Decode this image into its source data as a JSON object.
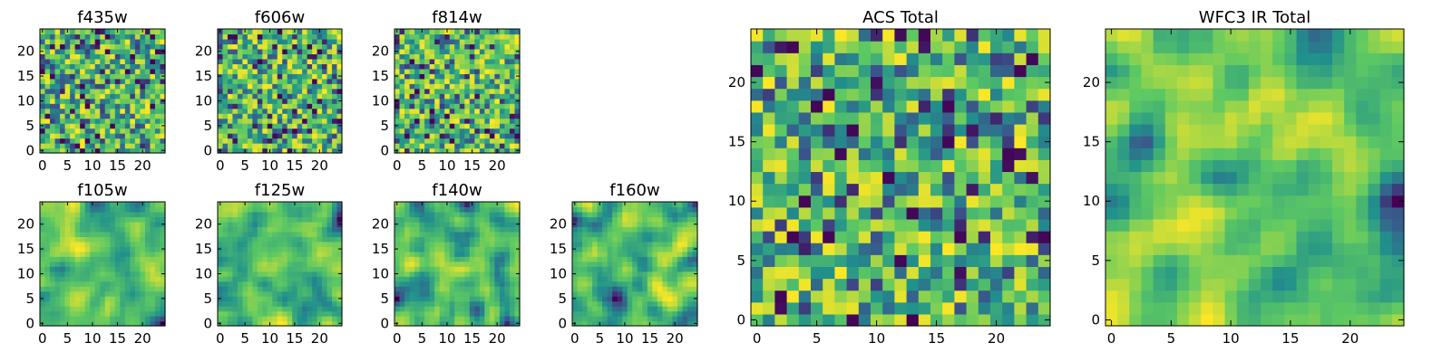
{
  "figure": {
    "description": ""
  },
  "colormap": {
    "name": "viridis",
    "stops": [
      "#440154",
      "#3b528b",
      "#21918c",
      "#5ec962",
      "#fde725"
    ]
  },
  "chart_data": [
    {
      "type": "heatmap",
      "title": "f435w",
      "xlim": [
        0,
        24
      ],
      "ylim": [
        0,
        24
      ],
      "xticks": [
        "0",
        "5",
        "10",
        "15",
        "20"
      ],
      "yticks": [
        "0",
        "5",
        "10",
        "15",
        "20"
      ],
      "grid_size": [
        25,
        25
      ],
      "style": "noise",
      "seed": 11,
      "grid": false,
      "values": "25x25 flux map (normalized 0–1), rendered with viridis"
    },
    {
      "type": "heatmap",
      "title": "f606w",
      "xlim": [
        0,
        24
      ],
      "ylim": [
        0,
        24
      ],
      "xticks": [
        "0",
        "5",
        "10",
        "15",
        "20"
      ],
      "yticks": [
        "0",
        "5",
        "10",
        "15",
        "20"
      ],
      "grid_size": [
        25,
        25
      ],
      "style": "noise",
      "seed": 23,
      "grid": false,
      "values": "25x25 flux map (normalized 0–1), rendered with viridis"
    },
    {
      "type": "heatmap",
      "title": "f814w",
      "xlim": [
        0,
        24
      ],
      "ylim": [
        0,
        24
      ],
      "xticks": [
        "0",
        "5",
        "10",
        "15",
        "20"
      ],
      "yticks": [
        "0",
        "5",
        "10",
        "15",
        "20"
      ],
      "grid_size": [
        25,
        25
      ],
      "style": "noise",
      "seed": 37,
      "grid": false,
      "values": "25x25 flux map (normalized 0–1), rendered with viridis"
    },
    {
      "type": "heatmap",
      "title": "f105w",
      "xlim": [
        0,
        24
      ],
      "ylim": [
        0,
        24
      ],
      "xticks": [
        "0",
        "5",
        "10",
        "15",
        "20"
      ],
      "yticks": [
        "0",
        "5",
        "10",
        "15",
        "20"
      ],
      "grid_size": [
        25,
        25
      ],
      "style": "smooth",
      "seed": 41,
      "grid": false,
      "values": "25x25 flux map (normalized 0–1), rendered with viridis"
    },
    {
      "type": "heatmap",
      "title": "f125w",
      "xlim": [
        0,
        24
      ],
      "ylim": [
        0,
        24
      ],
      "xticks": [
        "0",
        "5",
        "10",
        "15",
        "20"
      ],
      "yticks": [
        "0",
        "5",
        "10",
        "15",
        "20"
      ],
      "grid_size": [
        25,
        25
      ],
      "style": "smooth",
      "seed": 53,
      "grid": false,
      "values": "25x25 flux map (normalized 0–1), rendered with viridis"
    },
    {
      "type": "heatmap",
      "title": "f140w",
      "xlim": [
        0,
        24
      ],
      "ylim": [
        0,
        24
      ],
      "xticks": [
        "0",
        "5",
        "10",
        "15",
        "20"
      ],
      "yticks": [
        "0",
        "5",
        "10",
        "15",
        "20"
      ],
      "grid_size": [
        25,
        25
      ],
      "style": "smooth",
      "seed": 67,
      "grid": false,
      "values": "25x25 flux map (normalized 0–1), rendered with viridis"
    },
    {
      "type": "heatmap",
      "title": "f160w",
      "xlim": [
        0,
        24
      ],
      "ylim": [
        0,
        24
      ],
      "xticks": [
        "0",
        "5",
        "10",
        "15",
        "20"
      ],
      "yticks": [
        "0",
        "5",
        "10",
        "15",
        "20"
      ],
      "grid_size": [
        25,
        25
      ],
      "style": "smooth",
      "seed": 79,
      "grid": false,
      "values": "25x25 flux map (normalized 0–1), rendered with viridis"
    },
    {
      "type": "heatmap",
      "title": "ACS Total",
      "xlim": [
        0,
        24
      ],
      "ylim": [
        0,
        24
      ],
      "xticks": [
        "0",
        "5",
        "10",
        "15",
        "20"
      ],
      "yticks": [
        "0",
        "5",
        "10",
        "15",
        "20"
      ],
      "grid_size": [
        25,
        25
      ],
      "style": "noise",
      "seed": 97,
      "grid": false,
      "values": "25x25 summed flux map (normalized 0–1), rendered with viridis"
    },
    {
      "type": "heatmap",
      "title": "WFC3 IR Total",
      "xlim": [
        0,
        24
      ],
      "ylim": [
        0,
        24
      ],
      "xticks": [
        "0",
        "5",
        "10",
        "15",
        "20"
      ],
      "yticks": [
        "0",
        "5",
        "10",
        "15",
        "20"
      ],
      "grid_size": [
        25,
        25
      ],
      "style": "smooth",
      "seed": 113,
      "grid": false,
      "values": "25x25 summed flux map (normalized 0–1), rendered with viridis"
    }
  ]
}
